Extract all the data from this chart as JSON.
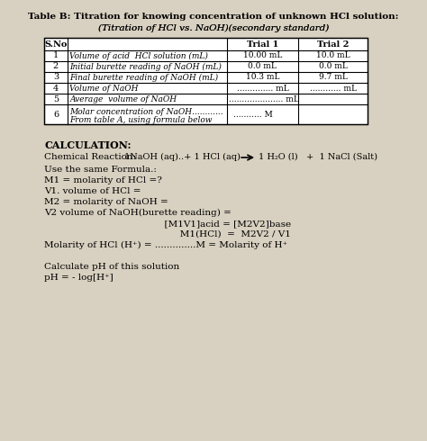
{
  "title1": "Table B: Titration for knowing concentration of unknown HCl solution:",
  "title2": "(Titration of HCl vs. NaOH)(secondary standard)",
  "title2_underline": "NaOH",
  "bg_color": "#d8d0c0",
  "table_headers": [
    "S.No",
    "",
    "Trial 1",
    "Trial 2"
  ],
  "rows": [
    [
      "1",
      "Volume of acid  HCl solution (mL)",
      "10.00 mL",
      "10.0 mL"
    ],
    [
      "2",
      "Initial burette reading of NaOH (mL)",
      "0.0 mL",
      "0.0 mL"
    ],
    [
      "3",
      "Final burette reading of NaOH (mL)",
      "10.3 mL",
      "9.7 mL"
    ],
    [
      "4",
      "Volume of NaOH",
      ".............. mL",
      "............ mL"
    ],
    [
      "5",
      "Average  volume of NaOH",
      "..................... mL",
      ""
    ],
    [
      "6",
      "Molar concentration of NaOH............\nFrom table A, using formula below",
      "........... M",
      ""
    ]
  ],
  "calc_title": "CALCULATION:",
  "reaction_label": "Chemical Reaction:",
  "reaction": "  1NaOH (aq)..+ 1 HCl (aq)   ⟶   1 H₂O (l)   +  1 NaCl (Salt)",
  "lines": [
    "Use the same Formula.:",
    "M1 = molarity of HCl =?",
    "V1. volume of HCl =",
    "M2 = molarity of NaOH =",
    "V2 volume of NaOH(burette reading) =",
    "          [M1V1]acid = [M2V2]base",
    "               M1(HCl)  =  M2V2 / V1",
    "Molarity of HCl (H⁺) = ..............M = Molarity of H⁺",
    "",
    "Calculate pH of this solution",
    "pH = - log[H⁺]"
  ]
}
